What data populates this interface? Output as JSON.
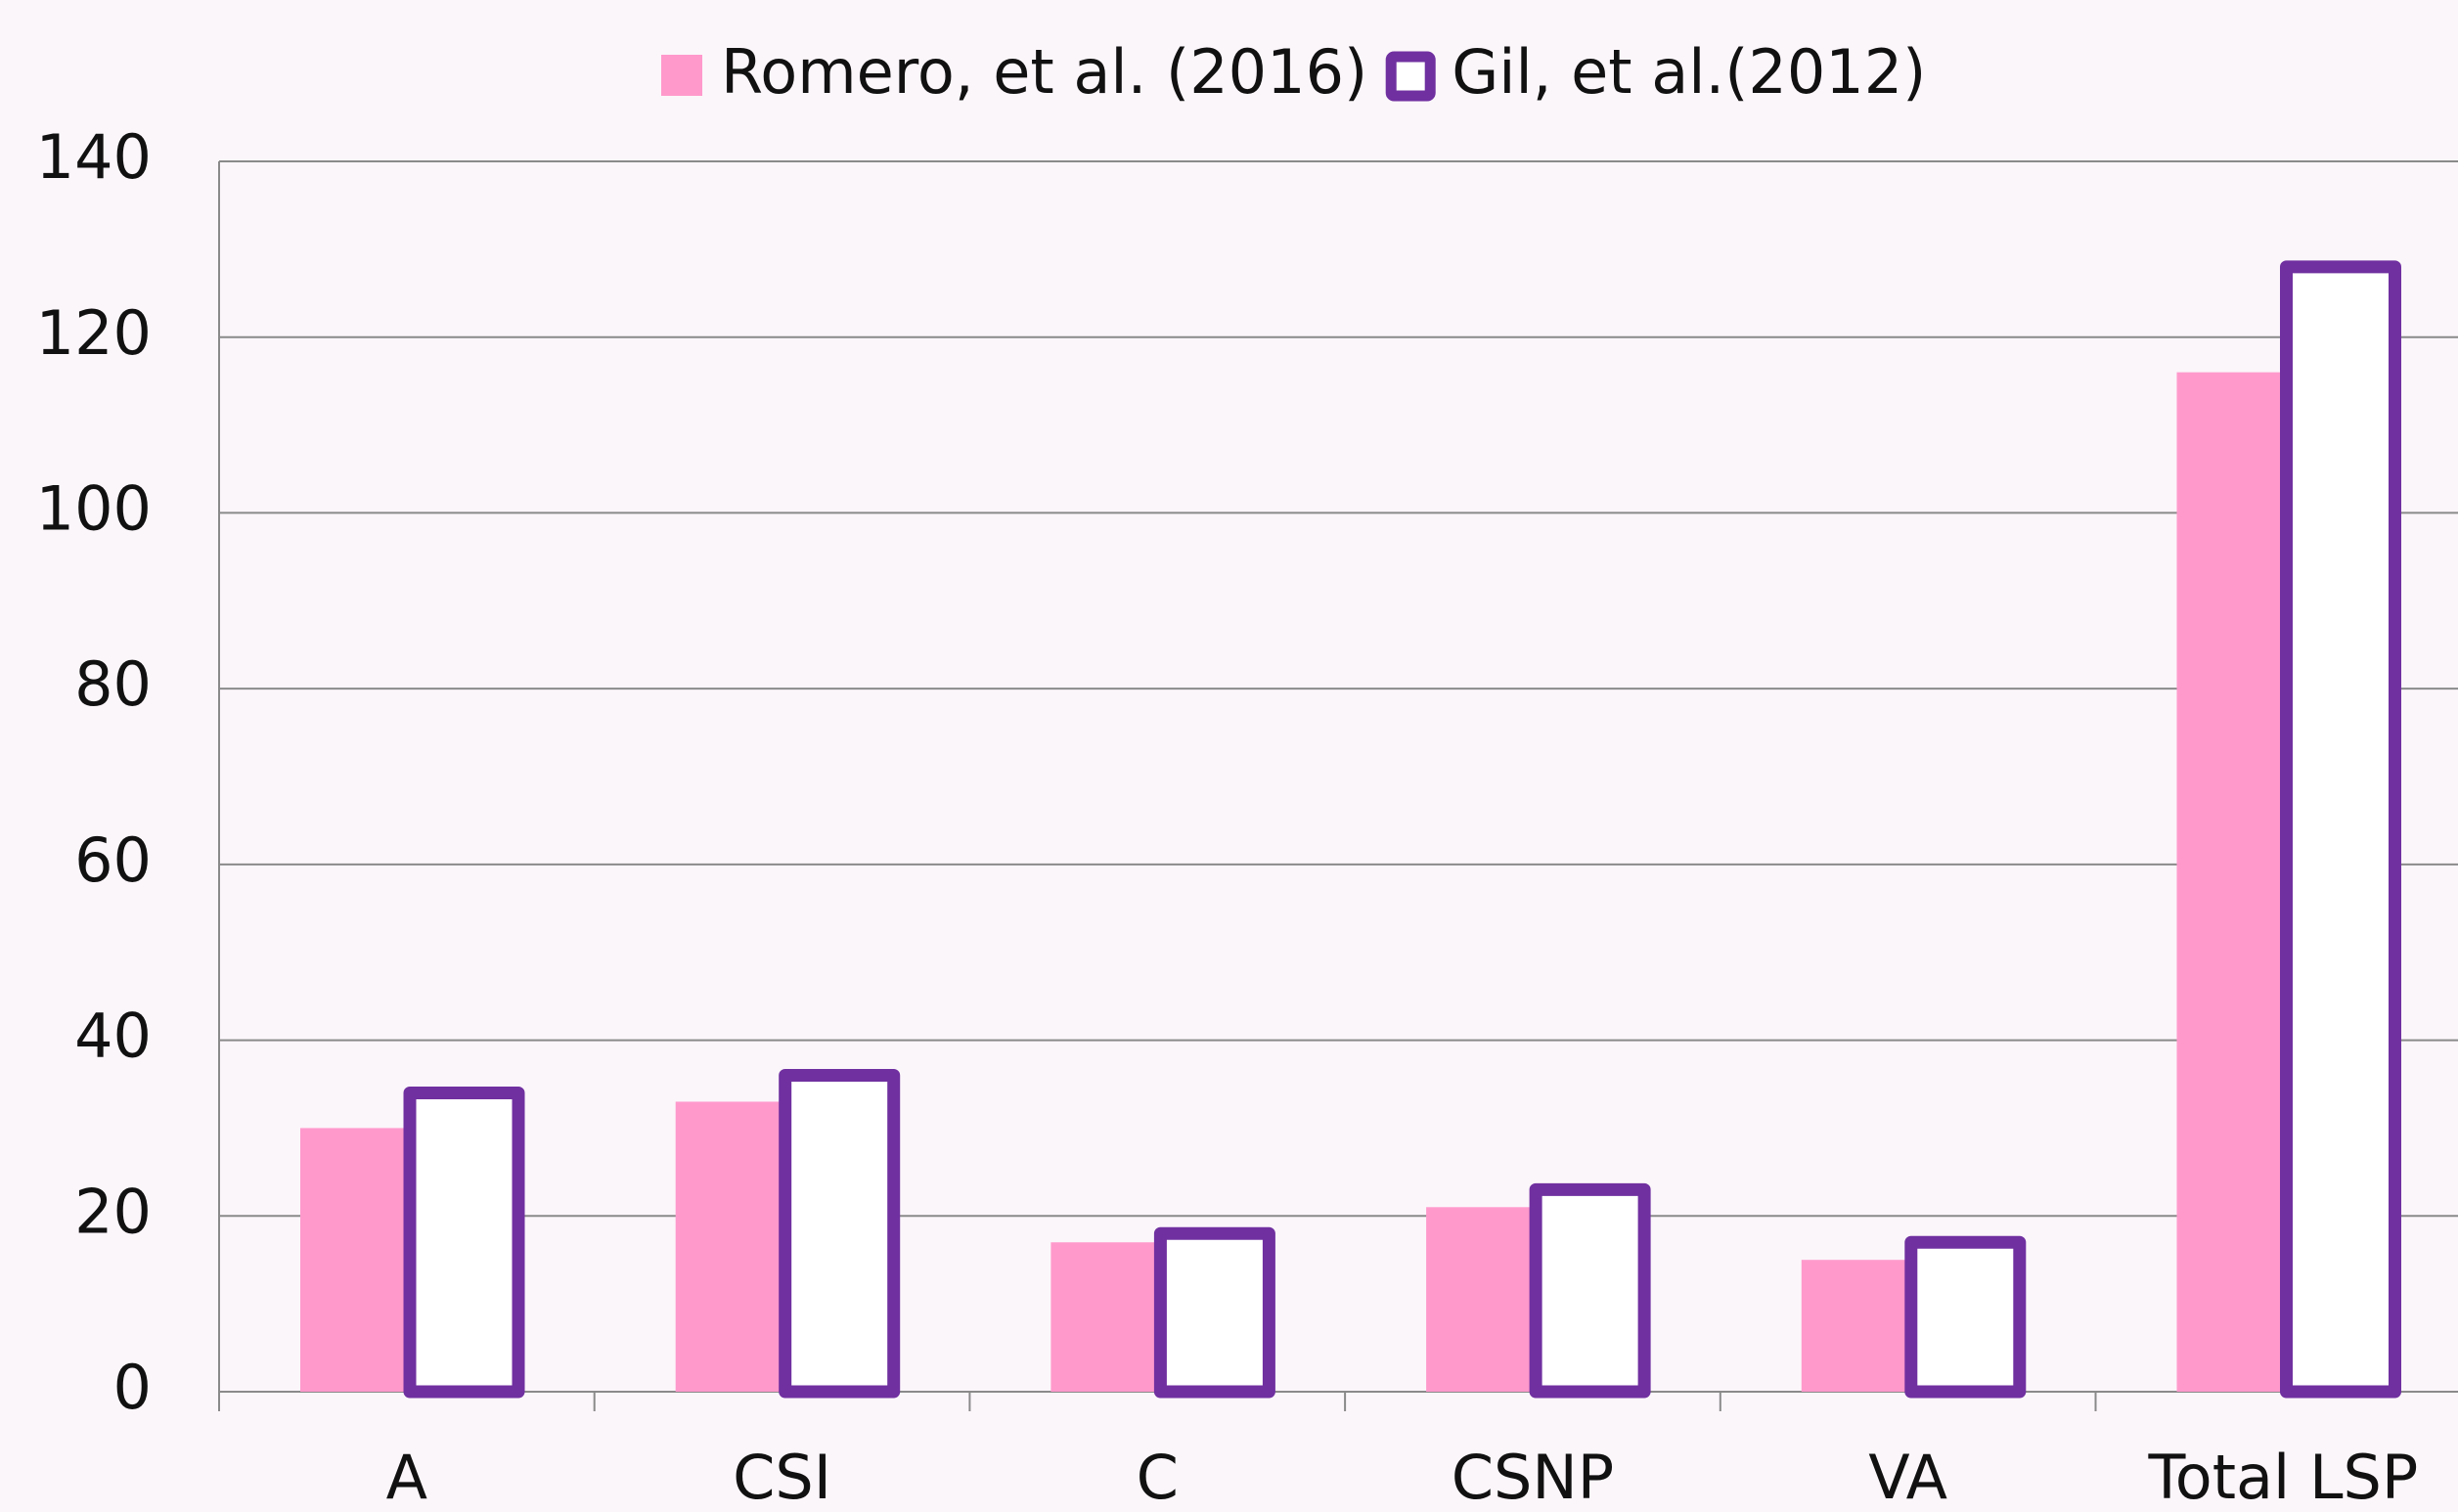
{
  "chart_data": {
    "type": "bar",
    "categories": [
      "A",
      "CSI",
      "C",
      "CSNP",
      "VA",
      "Total LSP"
    ],
    "series": [
      {
        "name": "Romero, et al. (2016)",
        "color": "#ff99cc",
        "values": [
          30,
          33,
          17,
          21,
          15,
          116
        ]
      },
      {
        "name": "Gil, et al.(2012)",
        "color": "#7030a0",
        "values": [
          34,
          36,
          18,
          23,
          17,
          128
        ]
      }
    ],
    "ylim": [
      0,
      140
    ],
    "yticks": [
      0,
      20,
      40,
      60,
      80,
      100,
      120,
      140
    ],
    "grid": true,
    "legend": "top"
  }
}
